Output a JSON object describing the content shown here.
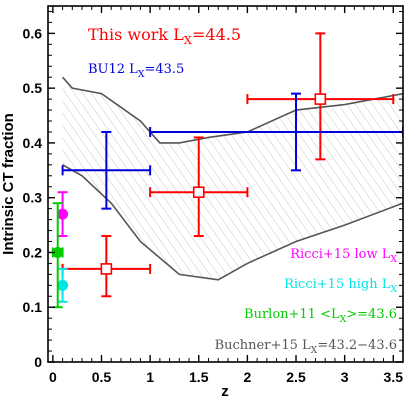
{
  "chart_data": {
    "type": "scatter",
    "xlabel": "z",
    "ylabel": "Intrinsic CT fraction",
    "xlim": [
      -0.05,
      3.6
    ],
    "ylim": [
      0,
      0.65
    ],
    "xticks": [
      "0",
      "0.5",
      "1",
      "1.5",
      "2",
      "2.5",
      "3",
      "3.5"
    ],
    "yticks": [
      "0",
      "0.1",
      "0.2",
      "0.3",
      "0.4",
      "0.5",
      "0.6"
    ],
    "legend": [
      {
        "pre": "This work  L",
        "sub": "X",
        "post": "=44.5",
        "color": "#ff0000"
      },
      {
        "pre": "BU12  L",
        "sub": "X",
        "post": "=43.5",
        "color": "#0000dd"
      },
      {
        "pre": "Ricci+15 low L",
        "sub": "X",
        "post": "",
        "color": "#ff00ff"
      },
      {
        "pre": "Ricci+15 high L",
        "sub": "X",
        "post": "",
        "color": "#00e5e5"
      },
      {
        "pre": "Burlon+11 <L",
        "sub": "X",
        "post": ">=43.6",
        "color": "#00cc00"
      },
      {
        "pre": "Buchner+15 L",
        "sub": "X",
        "post": "=43.2−43.6",
        "color": "#555555"
      }
    ],
    "series": [
      {
        "name": "This work",
        "color": "#ff0000",
        "marker": "open-square",
        "points": [
          {
            "x": 0.55,
            "y": 0.17,
            "xlo": 0.1,
            "xhi": 1.0,
            "ylo": 0.12,
            "yhi": 0.23
          },
          {
            "x": 1.5,
            "y": 0.31,
            "xlo": 1.0,
            "xhi": 2.0,
            "ylo": 0.23,
            "yhi": 0.41
          },
          {
            "x": 2.75,
            "y": 0.48,
            "xlo": 2.0,
            "xhi": 3.5,
            "ylo": 0.37,
            "yhi": 0.6
          }
        ]
      },
      {
        "name": "BU12",
        "color": "#0000dd",
        "marker": "none",
        "points": [
          {
            "x": 0.55,
            "y": 0.35,
            "xlo": 0.1,
            "xhi": 1.0,
            "ylo": 0.28,
            "yhi": 0.42
          },
          {
            "x": 2.5,
            "y": 0.42,
            "xlo": 1.0,
            "xhi": 3.6,
            "ylo": 0.35,
            "yhi": 0.49
          }
        ]
      },
      {
        "name": "Ricci+15 low",
        "color": "#ff00ff",
        "marker": "filled-circle",
        "points": [
          {
            "x": 0.1,
            "y": 0.27,
            "xlo": 0.1,
            "xhi": 0.1,
            "ylo": 0.23,
            "yhi": 0.31
          }
        ]
      },
      {
        "name": "Ricci+15 high",
        "color": "#00e5e5",
        "marker": "filled-circle",
        "points": [
          {
            "x": 0.1,
            "y": 0.14,
            "xlo": 0.1,
            "xhi": 0.1,
            "ylo": 0.11,
            "yhi": 0.17
          }
        ]
      },
      {
        "name": "Burlon+11",
        "color": "#00cc00",
        "marker": "filled-circle",
        "points": [
          {
            "x": 0.05,
            "y": 0.2,
            "xlo": 0.0,
            "xhi": 0.1,
            "ylo": 0.1,
            "yhi": 0.29
          }
        ]
      }
    ],
    "band": {
      "name": "Buchner+15",
      "color": "#555555",
      "upper": [
        [
          0.1,
          0.52
        ],
        [
          0.2,
          0.5
        ],
        [
          0.5,
          0.49
        ],
        [
          0.9,
          0.44
        ],
        [
          1.1,
          0.4
        ],
        [
          1.3,
          0.4
        ],
        [
          1.6,
          0.41
        ],
        [
          2.0,
          0.42
        ],
        [
          2.5,
          0.46
        ],
        [
          3.0,
          0.47
        ],
        [
          3.6,
          0.49
        ]
      ],
      "lower": [
        [
          0.1,
          0.36
        ],
        [
          0.3,
          0.34
        ],
        [
          0.6,
          0.29
        ],
        [
          0.9,
          0.22
        ],
        [
          1.3,
          0.16
        ],
        [
          1.7,
          0.15
        ],
        [
          2.0,
          0.18
        ],
        [
          2.5,
          0.22
        ],
        [
          3.0,
          0.25
        ],
        [
          3.6,
          0.29
        ]
      ]
    }
  }
}
